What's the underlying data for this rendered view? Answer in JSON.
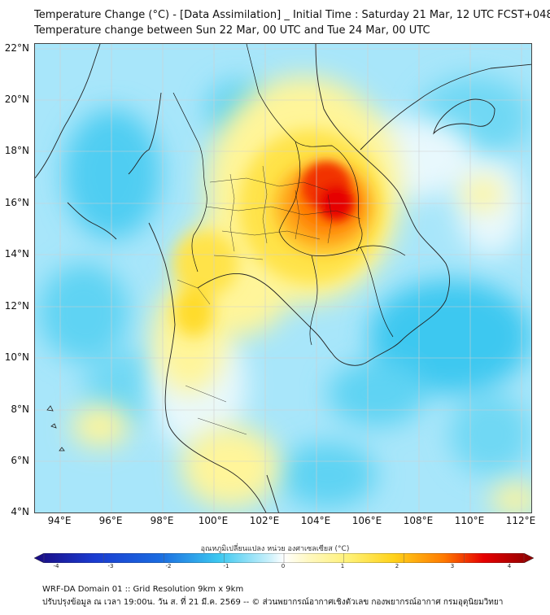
{
  "header": {
    "title_line1": "Temperature Change (°C) - [Data Assimilation] _ Initial Time : Saturday 21 Mar, 12 UTC FCST+048",
    "title_line2": "Temperature change between Sun 22 Mar, 00 UTC and Tue 24 Mar, 00 UTC"
  },
  "map": {
    "lat_labels": [
      "22°N",
      "20°N",
      "18°N",
      "16°N",
      "14°N",
      "12°N",
      "10°N",
      "8°N",
      "6°N",
      "4°N"
    ],
    "lon_labels": [
      "94°E",
      "96°E",
      "98°E",
      "100°E",
      "102°E",
      "104°E",
      "106°E",
      "108°E",
      "110°E",
      "112°E"
    ],
    "lat_range": [
      4,
      22.3
    ],
    "lon_range": [
      93,
      112.4
    ]
  },
  "colorbar": {
    "title": "อุณหภูมิเปลี่ยนแปลง หน่วย องศาเซลเซียส (°C)",
    "ticks": [
      "-4",
      "-3",
      "-2",
      "-1",
      "0",
      "1",
      "2",
      "3",
      "4"
    ],
    "range": [
      -4,
      4
    ],
    "colors": {
      "cold_extreme": "#1a0a80",
      "cold": "#1a6be0",
      "cool": "#3cc8f0",
      "slightly_cool": "#a8e6fa",
      "neutral": "#ffffff",
      "slightly_warm": "#fff59a",
      "warm": "#ffd21a",
      "hot": "#ff7a00",
      "very_hot": "#e60000",
      "hot_extreme": "#8a0000"
    }
  },
  "footer": {
    "line1": "WRF-DA Domain 01 :: Grid Resolution 9km x 9km",
    "line2": "ปรับปรุงข้อมูล ณ เวลา 19:00น. วัน ส. ที่ 21 มี.ค. 2569 -- © ส่วนพยากรณ์อากาศเชิงตัวเลข กองพยากรณ์อากาศ กรมอุตุนิยมวิทยา"
  }
}
